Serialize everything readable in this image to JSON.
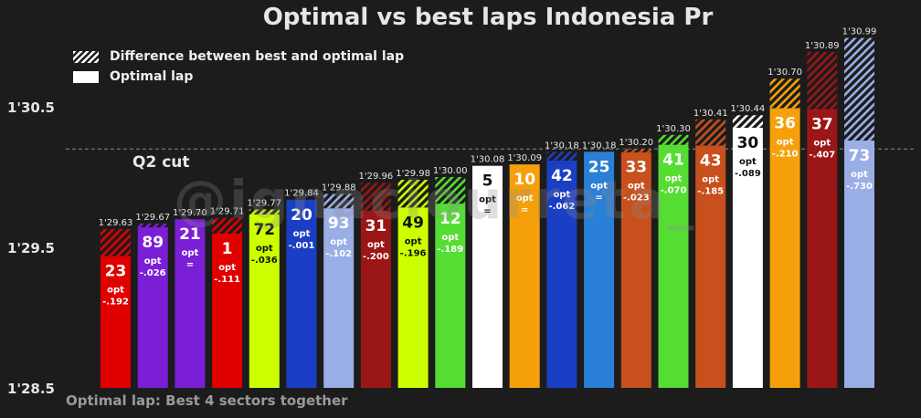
{
  "title": "Optimal vs best laps Indonesia Pr",
  "legend": {
    "hatch_label": "Difference between best and optimal lap",
    "solid_label": "Optimal lap"
  },
  "footnote": "Optimal lap: Best 4 sectors together",
  "watermark": "@ignaciourreta_",
  "reference_line": {
    "label": "Q2 cut",
    "value": 90.2
  },
  "colors": {
    "background": "#1c1c1c",
    "grid": "#8a8a8a",
    "text": "#e6e6e6"
  },
  "chart_data": {
    "type": "bar",
    "title": "Optimal vs best laps Indonesia Pr",
    "ylim": [
      88.5,
      91.0
    ],
    "yticks": [
      {
        "value": 88.5,
        "label": "1'28.5"
      },
      {
        "value": 89.5,
        "label": "1'29.5"
      },
      {
        "value": 90.5,
        "label": "1'30.5"
      }
    ],
    "series": [
      {
        "name": "Optimal lap",
        "style": "solid"
      },
      {
        "name": "Difference between best and optimal lap",
        "style": "hatched"
      }
    ],
    "bars": [
      {
        "rider": "23",
        "best": 89.63,
        "best_label": "1'29.63",
        "diff_label": "-.192",
        "color": "#e00000"
      },
      {
        "rider": "89",
        "best": 89.67,
        "best_label": "1'29.67",
        "diff_label": "-.026",
        "color": "#7a1fd6"
      },
      {
        "rider": "21",
        "best": 89.7,
        "best_label": "1'29.70",
        "diff_label": "=",
        "color": "#7a1fd6"
      },
      {
        "rider": "1",
        "best": 89.71,
        "best_label": "1'29.71",
        "diff_label": "-.111",
        "color": "#e00000"
      },
      {
        "rider": "72",
        "best": 89.77,
        "best_label": "1'29.77",
        "diff_label": "-.036",
        "color": "#ccff00"
      },
      {
        "rider": "20",
        "best": 89.84,
        "best_label": "1'29.84",
        "diff_label": "-.001",
        "color": "#1a3fc4"
      },
      {
        "rider": "93",
        "best": 89.88,
        "best_label": "1'29.88",
        "diff_label": "-.102",
        "color": "#9aaee6"
      },
      {
        "rider": "31",
        "best": 89.96,
        "best_label": "1'29.96",
        "diff_label": "-.200",
        "color": "#9b1616"
      },
      {
        "rider": "49",
        "best": 89.98,
        "best_label": "1'29.98",
        "diff_label": "-.196",
        "color": "#ccff00"
      },
      {
        "rider": "12",
        "best": 90.0,
        "best_label": "1'30.00",
        "diff_label": "-.189",
        "color": "#55dd33"
      },
      {
        "rider": "5",
        "best": 90.08,
        "best_label": "1'30.08",
        "diff_label": "=",
        "color": "#ffffff"
      },
      {
        "rider": "10",
        "best": 90.09,
        "best_label": "1'30.09",
        "diff_label": "=",
        "color": "#f5a00a"
      },
      {
        "rider": "42",
        "best": 90.18,
        "best_label": "1'30.18",
        "diff_label": "-.062",
        "color": "#1a3fc4"
      },
      {
        "rider": "25",
        "best": 90.18,
        "best_label": "1'30.18",
        "diff_label": "=",
        "color": "#2a7fd6"
      },
      {
        "rider": "33",
        "best": 90.2,
        "best_label": "1'30.20",
        "diff_label": "-.023",
        "color": "#c8501c"
      },
      {
        "rider": "41",
        "best": 90.3,
        "best_label": "1'30.30",
        "diff_label": "-.070",
        "color": "#55dd33"
      },
      {
        "rider": "43",
        "best": 90.41,
        "best_label": "1'30.41",
        "diff_label": "-.185",
        "color": "#c8501c"
      },
      {
        "rider": "30",
        "best": 90.44,
        "best_label": "1'30.44",
        "diff_label": "-.089",
        "color": "#ffffff"
      },
      {
        "rider": "36",
        "best": 90.7,
        "best_label": "1'30.70",
        "diff_label": "-.210",
        "color": "#f5a00a"
      },
      {
        "rider": "37",
        "best": 90.89,
        "best_label": "1'30.89",
        "diff_label": "-.407",
        "color": "#9b1616"
      },
      {
        "rider": "73",
        "best": 90.99,
        "best_label": "1'30.99",
        "diff_label": "-.730",
        "color": "#9aaee6"
      }
    ],
    "opt_label": "opt"
  }
}
